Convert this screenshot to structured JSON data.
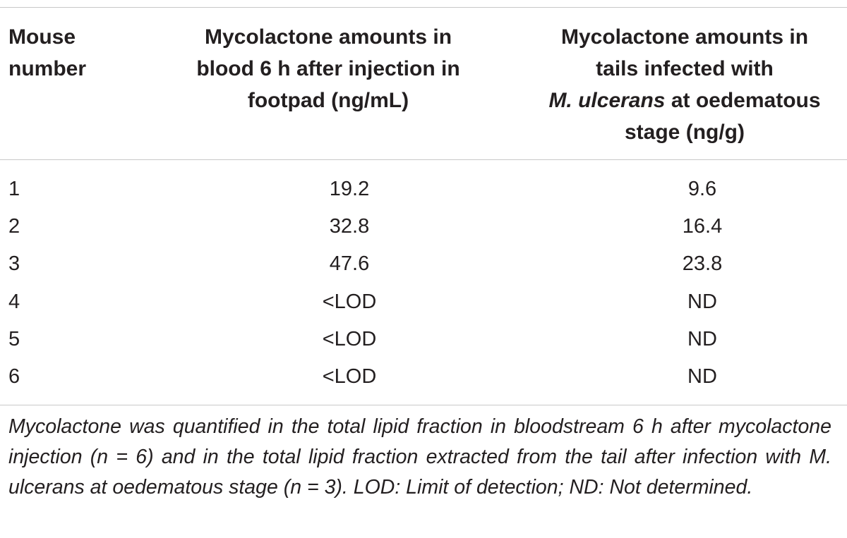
{
  "table": {
    "headers": {
      "col1": [
        "Mouse",
        "number"
      ],
      "col2": [
        "Mycolactone amounts in",
        "blood 6 h after injection in",
        "footpad (ng/mL)"
      ],
      "col3": {
        "line1": "Mycolactone amounts in",
        "line2": "tails infected with",
        "line3_italic": "M. ulcerans",
        "line3_rest": " at oedematous",
        "line4": "stage (ng/g)"
      }
    },
    "rows": [
      {
        "mouse": "1",
        "blood": "19.2",
        "tail": "9.6"
      },
      {
        "mouse": "2",
        "blood": "32.8",
        "tail": "16.4"
      },
      {
        "mouse": "3",
        "blood": "47.6",
        "tail": "23.8"
      },
      {
        "mouse": "4",
        "blood": "<LOD",
        "tail": "ND"
      },
      {
        "mouse": "5",
        "blood": "<LOD",
        "tail": "ND"
      },
      {
        "mouse": "6",
        "blood": "<LOD",
        "tail": "ND"
      }
    ]
  },
  "footnote": "Mycolactone was quantified in the total lipid fraction in bloodstream 6 h after mycolactone injection (n = 6) and in the total lipid fraction extracted from the tail after infection with M. ulcerans at oedematous stage (n = 3). LOD: Limit of detection; ND: Not determined."
}
